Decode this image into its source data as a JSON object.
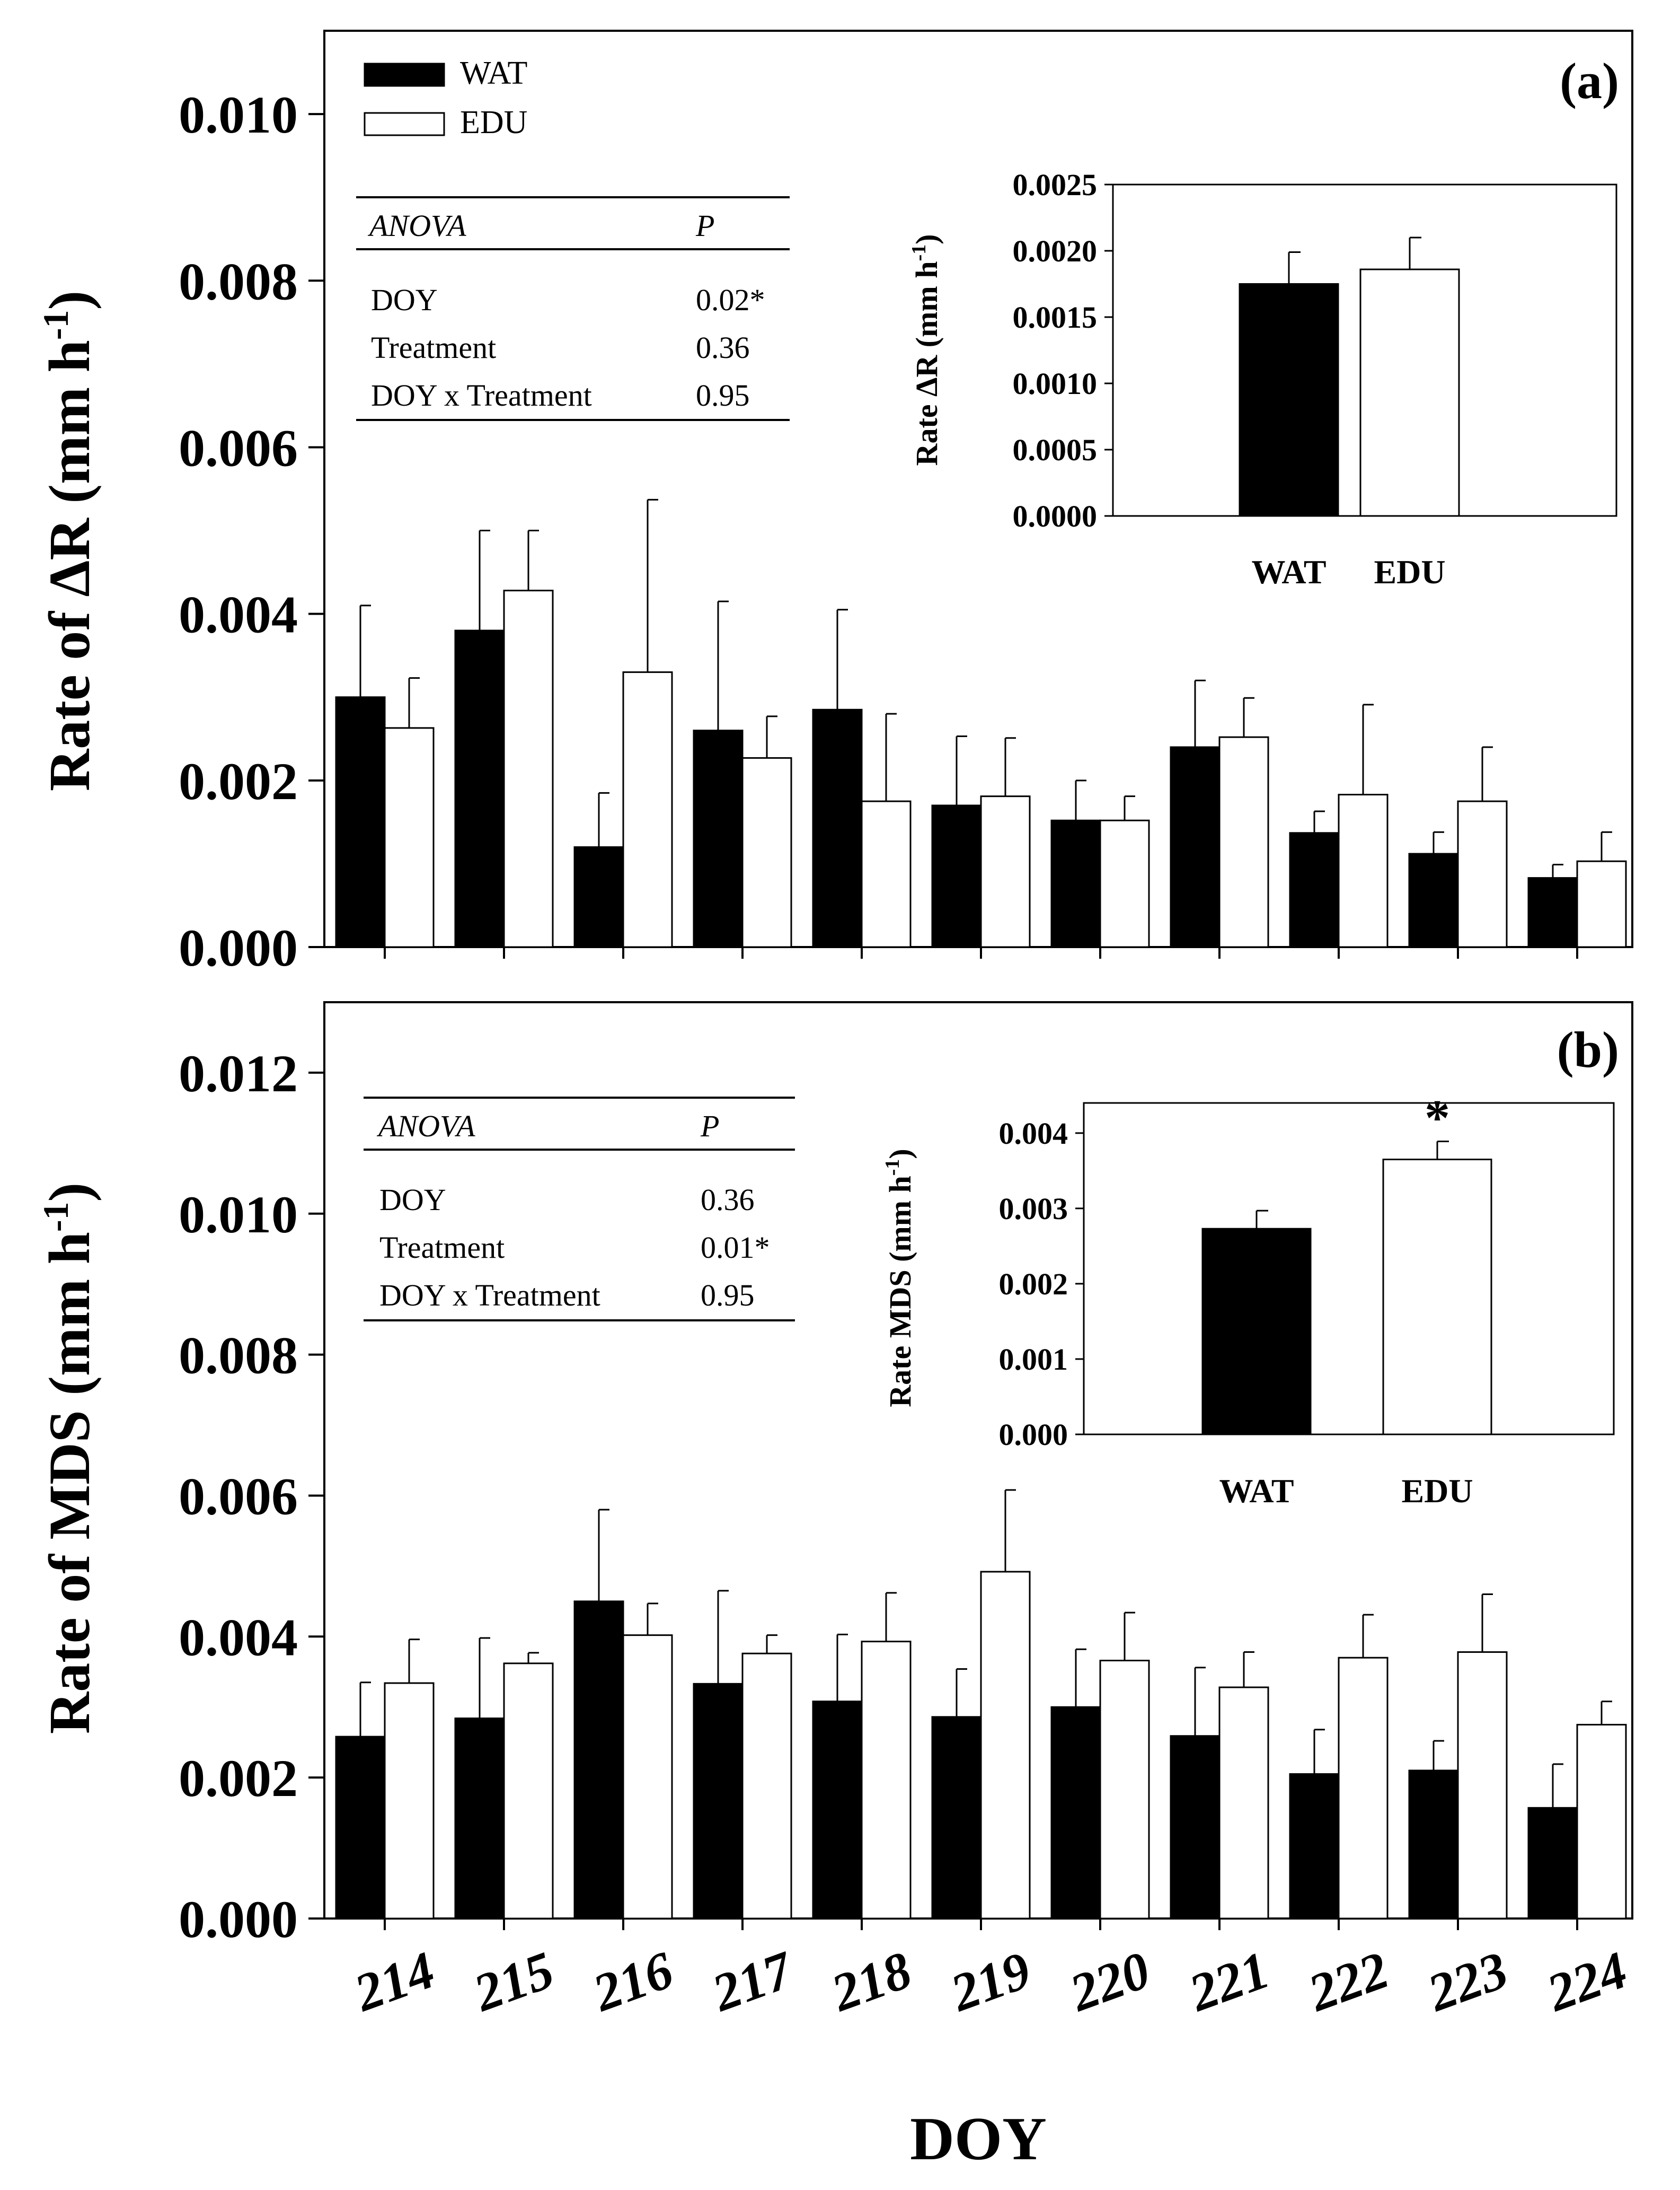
{
  "chart_data": [
    {
      "id": "a",
      "type": "bar",
      "panel_label": "(a)",
      "title": "",
      "xlabel": "DOY",
      "ylabel": "Rate of ΔR (mm h",
      "ylabel_sup": "-1",
      "ylabel_end": ")",
      "ylim": [
        0,
        0.011
      ],
      "yticks": [
        "0.000",
        "0.002",
        "0.004",
        "0.006",
        "0.008",
        "0.010"
      ],
      "categories": [
        "214",
        "215",
        "216",
        "217",
        "218",
        "219",
        "220",
        "221",
        "222",
        "223",
        "224"
      ],
      "legend_position": "top-left",
      "series": [
        {
          "name": "WAT",
          "fill": "#000000",
          "values": [
            0.003,
            0.0038,
            0.0012,
            0.0026,
            0.00285,
            0.0017,
            0.00152,
            0.0024,
            0.00137,
            0.00112,
            0.00083
          ],
          "errors": [
            0.0011,
            0.0012,
            0.00065,
            0.00155,
            0.0012,
            0.00083,
            0.00048,
            0.0008,
            0.00026,
            0.00026,
            0.00016
          ]
        },
        {
          "name": "EDU",
          "fill": "#ffffff",
          "values": [
            0.00263,
            0.00428,
            0.0033,
            0.00227,
            0.00175,
            0.00181,
            0.00152,
            0.00252,
            0.00183,
            0.00175,
            0.00103
          ],
          "errors": [
            0.0006,
            0.00072,
            0.00207,
            0.0005,
            0.00105,
            0.0007,
            0.00029,
            0.00047,
            0.00108,
            0.00065,
            0.00035
          ]
        }
      ],
      "anova": {
        "header": [
          "ANOVA",
          "P"
        ],
        "rows": [
          [
            "DOY",
            "0.02*"
          ],
          [
            "Treatment",
            "0.36"
          ],
          [
            "DOY x Treatment",
            "0.95"
          ]
        ]
      },
      "inset": {
        "type": "bar",
        "ylabel": "Rate ΔR (mm h",
        "ylabel_sup": "-1",
        "ylabel_end": ")",
        "ylim": [
          0,
          0.0025
        ],
        "yticks": [
          "0.0000",
          "0.0005",
          "0.0010",
          "0.0015",
          "0.0020",
          "0.0025"
        ],
        "categories": [
          "WAT",
          "EDU"
        ],
        "values": [
          0.00175,
          0.00186
        ],
        "errors": [
          0.00024,
          0.00024
        ],
        "fills": [
          "#000000",
          "#ffffff"
        ],
        "annotations": [
          "",
          ""
        ]
      }
    },
    {
      "id": "b",
      "type": "bar",
      "panel_label": "(b)",
      "title": "",
      "xlabel": "DOY",
      "ylabel": "Rate of MDS (mm h",
      "ylabel_sup": "-1",
      "ylabel_end": ")",
      "ylim": [
        0,
        0.013
      ],
      "yticks": [
        "0.000",
        "0.002",
        "0.004",
        "0.006",
        "0.008",
        "0.010",
        "0.012"
      ],
      "categories": [
        "214",
        "215",
        "216",
        "217",
        "218",
        "219",
        "220",
        "221",
        "222",
        "223",
        "224"
      ],
      "series": [
        {
          "name": "WAT",
          "fill": "#000000",
          "values": [
            0.00258,
            0.00284,
            0.0045,
            0.00333,
            0.00308,
            0.00286,
            0.003,
            0.00259,
            0.00205,
            0.0021,
            0.00157
          ],
          "errors": [
            0.00077,
            0.00114,
            0.0013,
            0.00132,
            0.00095,
            0.00068,
            0.00082,
            0.00097,
            0.00063,
            0.00042,
            0.00062
          ]
        },
        {
          "name": "EDU",
          "fill": "#ffffff",
          "values": [
            0.00334,
            0.00362,
            0.00402,
            0.00376,
            0.00393,
            0.00492,
            0.00366,
            0.00328,
            0.0037,
            0.00378,
            0.00275
          ],
          "errors": [
            0.00062,
            0.00015,
            0.00045,
            0.00026,
            0.00069,
            0.00116,
            0.00068,
            0.0005,
            0.00061,
            0.00082,
            0.00033
          ]
        }
      ],
      "anova": {
        "header": [
          "ANOVA",
          "P"
        ],
        "rows": [
          [
            "DOY",
            "0.36"
          ],
          [
            "Treatment",
            "0.01*"
          ],
          [
            "DOY x Treatment",
            "0.95"
          ]
        ]
      },
      "inset": {
        "type": "bar",
        "ylabel": "Rate MDS (mm h",
        "ylabel_sup": "-1",
        "ylabel_end": ")",
        "ylim": [
          0,
          0.0044
        ],
        "yticks": [
          "0.000",
          "0.001",
          "0.002",
          "0.003",
          "0.004"
        ],
        "categories": [
          "WAT",
          "EDU"
        ],
        "values": [
          0.00273,
          0.00365
        ],
        "errors": [
          0.00024,
          0.00024
        ],
        "fills": [
          "#000000",
          "#ffffff"
        ],
        "annotations": [
          "",
          "*"
        ]
      }
    }
  ]
}
